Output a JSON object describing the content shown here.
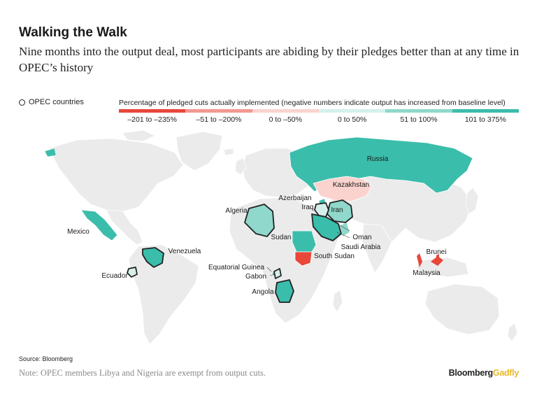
{
  "header": {
    "title": "Walking the Walk",
    "subtitle": "Nine months into the output deal, most participants are abiding by their pledges better than at any time in OPEC’s history"
  },
  "legend": {
    "opec_label": "OPEC countries",
    "title": "Percentage of pledged cuts actually implemented (negative numbers indicate output has increased from baseline level)",
    "bins": [
      {
        "label": "–201 to –235%",
        "color": "#e8473a"
      },
      {
        "label": "–51 to –200%",
        "color": "#f29990"
      },
      {
        "label": "0 to –50%",
        "color": "#fad3cf"
      },
      {
        "label": "0 to 50%",
        "color": "#d6efeb"
      },
      {
        "label": "51 to 100%",
        "color": "#8fd8cb"
      },
      {
        "label": "101 to 375%",
        "color": "#3bbdab"
      }
    ]
  },
  "map": {
    "colors": {
      "land": "#ebebeb",
      "border": "#ffffff",
      "opec_outline": "#222222"
    },
    "countries": [
      {
        "name": "Russia",
        "category": "101 to 375%",
        "opec": false
      },
      {
        "name": "Kazakhstan",
        "category": "0 to –50%",
        "opec": false
      },
      {
        "name": "Azerbaijan",
        "category": "101 to 375%",
        "opec": false
      },
      {
        "name": "Iraq",
        "category": "0 to 50%",
        "opec": true
      },
      {
        "name": "Iran",
        "category": "51 to 100%",
        "opec": true
      },
      {
        "name": "Algeria",
        "category": "51 to 100%",
        "opec": true
      },
      {
        "name": "Mexico",
        "category": "101 to 375%",
        "opec": false
      },
      {
        "name": "Oman",
        "category": "51 to 100%",
        "opec": false
      },
      {
        "name": "Sudan",
        "category": "101 to 375%",
        "opec": false
      },
      {
        "name": "Saudi Arabia",
        "category": "101 to 375%",
        "opec": true
      },
      {
        "name": "Venezuela",
        "category": "101 to 375%",
        "opec": true
      },
      {
        "name": "South Sudan",
        "category": "–201 to –235%",
        "opec": false
      },
      {
        "name": "Brunei",
        "category": "–201 to –235%",
        "opec": false
      },
      {
        "name": "Equatorial Guinea",
        "category": "101 to 375%",
        "opec": false
      },
      {
        "name": "Gabon",
        "category": "0 to 50%",
        "opec": true
      },
      {
        "name": "Ecuador",
        "category": "0 to 50%",
        "opec": true
      },
      {
        "name": "Malaysia",
        "category": "–201 to –235%",
        "opec": false
      },
      {
        "name": "Angola",
        "category": "101 to 375%",
        "opec": true
      }
    ]
  },
  "footer": {
    "source": "Source: Bloomberg",
    "note": "Note: OPEC members Libya and Nigeria are exempt from output cuts.",
    "brand_1": "Bloomberg",
    "brand_2": "Gadfly"
  }
}
